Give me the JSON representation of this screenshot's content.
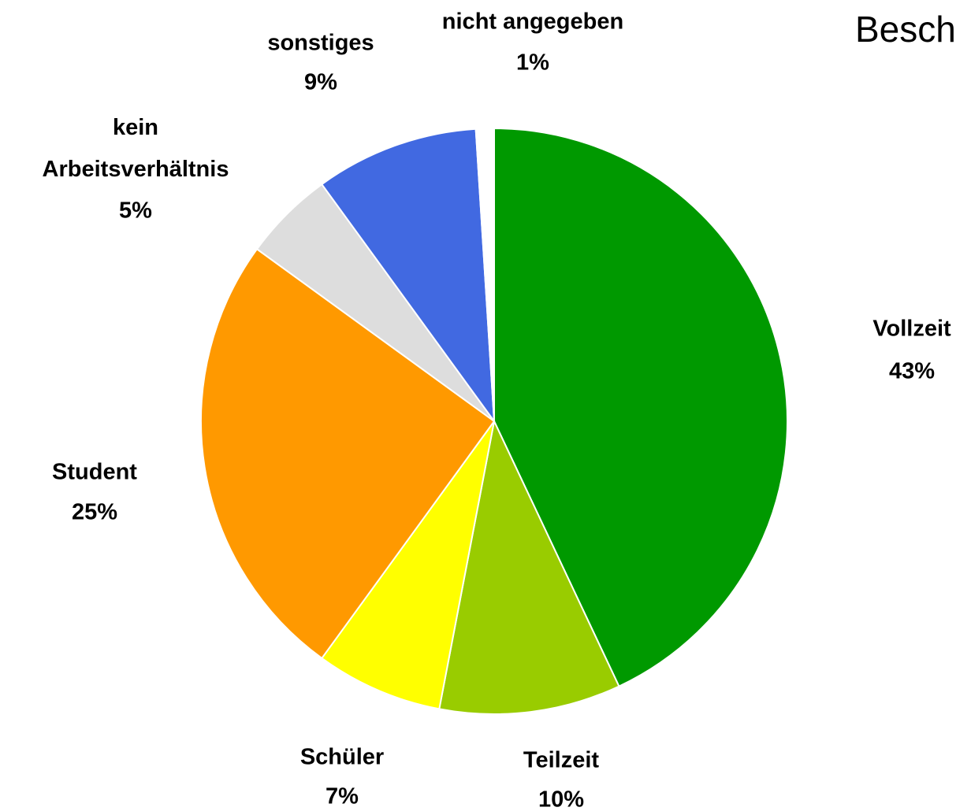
{
  "chart_data": {
    "type": "pie",
    "title": "Besch",
    "categories": [
      "Vollzeit",
      "Teilzeit",
      "Schüler",
      "Student",
      "kein\nArbeitsverhältnis",
      "sonstiges",
      "nicht angegeben"
    ],
    "values": [
      43,
      10,
      7,
      25,
      5,
      9,
      1
    ],
    "value_labels": [
      "43%",
      "10%",
      "7%",
      "25%",
      "5%",
      "9%",
      "1%"
    ],
    "colors": [
      "#009900",
      "#99cc00",
      "#ffff00",
      "#ff9900",
      "#dddddd",
      "#4169e1",
      "#ffffff"
    ]
  }
}
